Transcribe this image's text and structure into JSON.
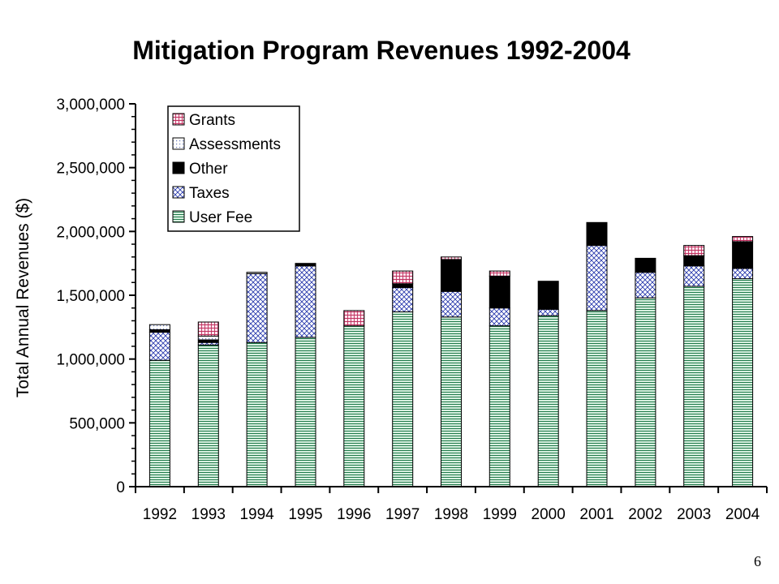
{
  "slide": {
    "title": "Mitigation Program Revenues 1992-2004",
    "page_number": "6"
  },
  "chart_data": {
    "type": "bar",
    "stacked": true,
    "title": "Mitigation Program Revenues 1992-2004",
    "xlabel": "",
    "ylabel": "Total Annual Revenues ($)",
    "ylim": [
      0,
      3000000
    ],
    "yticks": [
      {
        "value": 0,
        "label": "0"
      },
      {
        "value": 500000,
        "label": "500,000"
      },
      {
        "value": 1000000,
        "label": "1,000,000"
      },
      {
        "value": 1500000,
        "label": "1,500,000"
      },
      {
        "value": 2000000,
        "label": "2,000,000"
      },
      {
        "value": 2500000,
        "label": "2,500,000"
      },
      {
        "value": 3000000,
        "label": "3,000,000"
      }
    ],
    "grid": false,
    "legend_position": "top-left",
    "legend_order": [
      "Grants",
      "Assessments",
      "Other",
      "Taxes",
      "User Fee"
    ],
    "categories": [
      "1992",
      "1993",
      "1994",
      "1995",
      "1996",
      "1997",
      "1998",
      "1999",
      "2000",
      "2001",
      "2002",
      "2003",
      "2004"
    ],
    "series": [
      {
        "name": "User Fee",
        "pattern": "hlines",
        "color": "#1f7a4a",
        "fill": "#d8f0e0",
        "values": [
          990000,
          1110000,
          1130000,
          1170000,
          1260000,
          1370000,
          1330000,
          1260000,
          1340000,
          1380000,
          1480000,
          1570000,
          1630000
        ]
      },
      {
        "name": "Taxes",
        "pattern": "crosshatch",
        "color": "#2233aa",
        "fill": "#ffffff",
        "values": [
          220000,
          20000,
          540000,
          560000,
          0,
          190000,
          200000,
          140000,
          50000,
          510000,
          200000,
          160000,
          80000
        ]
      },
      {
        "name": "Other",
        "pattern": "solid",
        "color": "#000000",
        "fill": "#000000",
        "values": [
          20000,
          20000,
          0,
          20000,
          0,
          30000,
          250000,
          250000,
          220000,
          180000,
          110000,
          80000,
          210000
        ]
      },
      {
        "name": "Assessments",
        "pattern": "dots",
        "color": "#6677bb",
        "fill": "#ffffff",
        "values": [
          40000,
          30000,
          10000,
          0,
          0,
          0,
          0,
          0,
          0,
          0,
          0,
          0,
          0
        ]
      },
      {
        "name": "Grants",
        "pattern": "grid",
        "color": "#c0305f",
        "fill": "#fbe3ec",
        "values": [
          0,
          110000,
          0,
          0,
          120000,
          100000,
          20000,
          40000,
          0,
          0,
          0,
          80000,
          40000
        ]
      }
    ]
  }
}
